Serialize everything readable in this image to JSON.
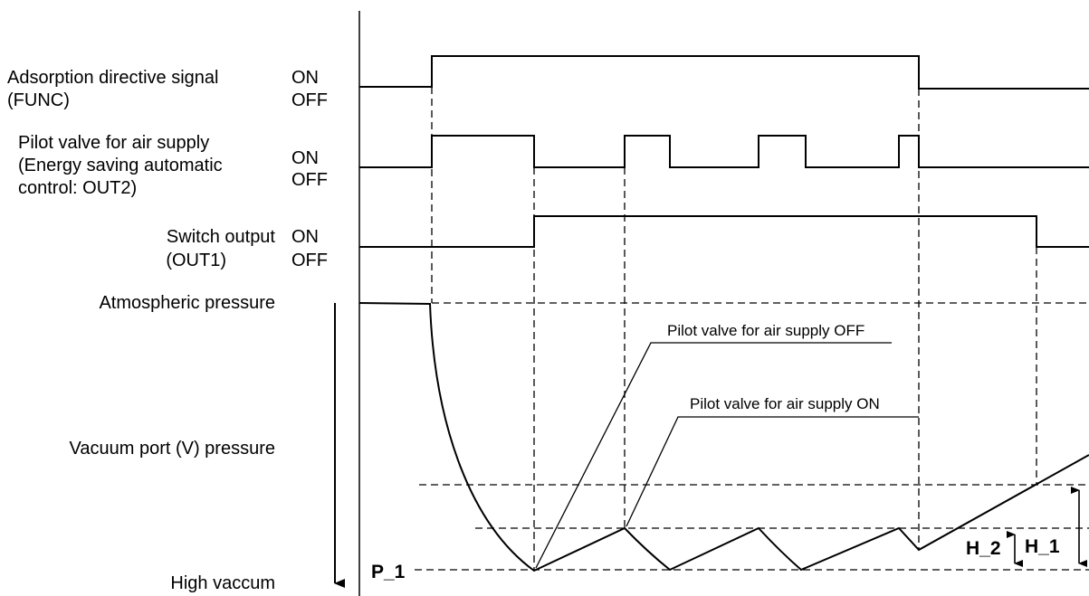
{
  "signals": {
    "func": {
      "name_line1": "Adsorption directive signal",
      "name_line2": "(FUNC)",
      "on": "ON",
      "off": "OFF"
    },
    "out2": {
      "name_line1": "Pilot valve for air supply",
      "name_line2": "(Energy saving automatic",
      "name_line3": "control: OUT2)",
      "on": "ON",
      "off": "OFF"
    },
    "out1": {
      "name_line1": "Switch output",
      "name_line2": "(OUT1)",
      "on": "ON",
      "off": "OFF"
    }
  },
  "pressure": {
    "atmospheric": "Atmospheric pressure",
    "vacuum_port": "Vacuum port (V) pressure",
    "high_vacuum": "High vaccum"
  },
  "annotations": {
    "pilot_off": "Pilot valve for air supply OFF",
    "pilot_on": "Pilot valve for air supply ON"
  },
  "markers": {
    "p1": "P_1",
    "h1": "H_1",
    "h2": "H_2"
  }
}
